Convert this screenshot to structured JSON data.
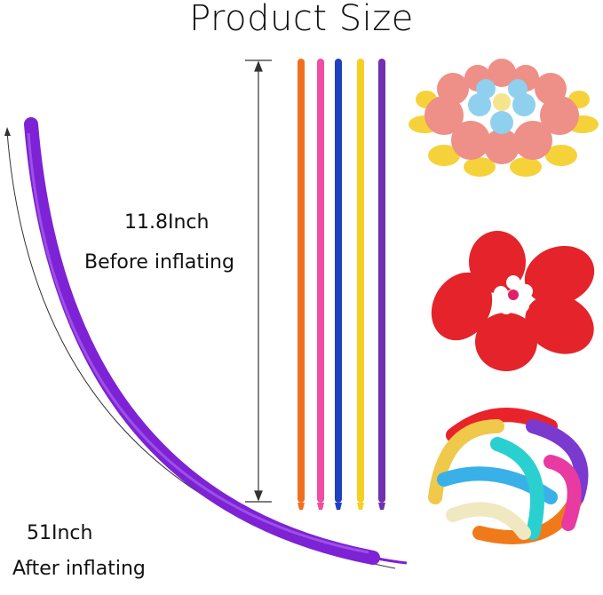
{
  "title": "Product Size",
  "before": {
    "length": "11.8Inch",
    "label": "Before inflating"
  },
  "after": {
    "length": "51Inch",
    "label": "After inflating"
  },
  "balloon_colors": [
    "#f07020",
    "#f04ea0",
    "#2040c0",
    "#f6d020",
    "#7030b0"
  ],
  "inflated_color": "#8a2be2",
  "examples": [
    "flower-cluster-icon",
    "red-flower-icon",
    "tangled-ball-icon"
  ]
}
